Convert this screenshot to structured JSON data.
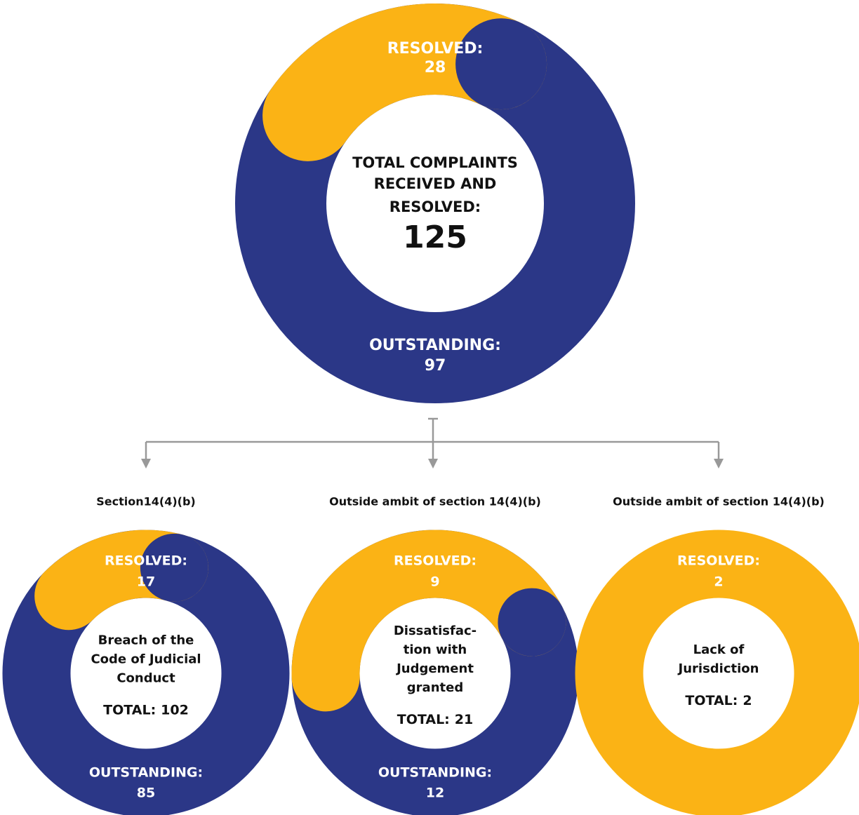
{
  "chart_data": [
    {
      "type": "donut",
      "center_lines": [
        "TOTAL COMPLAINTS",
        "RECEIVED AND",
        "RESOLVED:"
      ],
      "total": 125,
      "categories": [
        "RESOLVED:",
        "OUTSTANDING:"
      ],
      "values": [
        28,
        97
      ],
      "colors": [
        "#fbb315",
        "#2b3787"
      ]
    },
    {
      "type": "donut",
      "subtitle": "Section14(4)(b)",
      "center_lines": [
        "Breach of the",
        "Code of Judicial",
        "Conduct"
      ],
      "total_label": "TOTAL:",
      "total": 102,
      "categories": [
        "RESOLVED:",
        "OUTSTANDING:"
      ],
      "values": [
        17,
        85
      ],
      "colors": [
        "#fbb315",
        "#2b3787"
      ]
    },
    {
      "type": "donut",
      "subtitle": "Outside ambit of section 14(4)(b)",
      "center_lines": [
        "Dissatisfac-",
        "tion with",
        "Judgement",
        "granted"
      ],
      "total_label": "TOTAL:",
      "total": 21,
      "categories": [
        "RESOLVED:",
        "OUTSTANDING:"
      ],
      "values": [
        9,
        12
      ],
      "colors": [
        "#fbb315",
        "#2b3787"
      ]
    },
    {
      "type": "donut",
      "subtitle": "Outside ambit of section 14(4)(b)",
      "center_lines": [
        "Lack of",
        "Jurisdiction"
      ],
      "total_label": "TOTAL:",
      "total": 2,
      "categories": [
        "RESOLVED:"
      ],
      "values": [
        2
      ],
      "colors": [
        "#fbb315"
      ]
    }
  ]
}
